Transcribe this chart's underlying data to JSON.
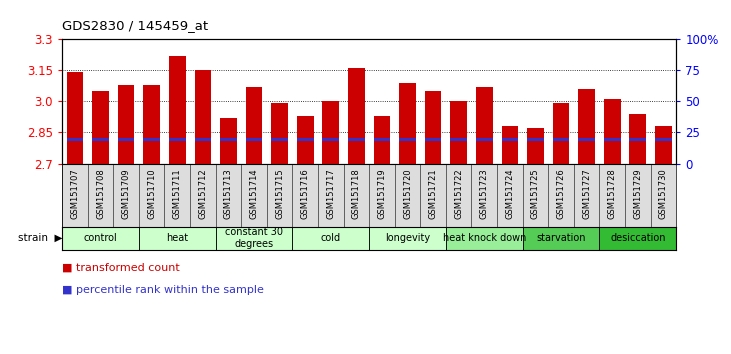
{
  "title": "GDS2830 / 145459_at",
  "samples": [
    "GSM151707",
    "GSM151708",
    "GSM151709",
    "GSM151710",
    "GSM151711",
    "GSM151712",
    "GSM151713",
    "GSM151714",
    "GSM151715",
    "GSM151716",
    "GSM151717",
    "GSM151718",
    "GSM151719",
    "GSM151720",
    "GSM151721",
    "GSM151722",
    "GSM151723",
    "GSM151724",
    "GSM151725",
    "GSM151726",
    "GSM151727",
    "GSM151728",
    "GSM151729",
    "GSM151730"
  ],
  "transformed_counts": [
    3.14,
    3.05,
    3.08,
    3.08,
    3.22,
    3.15,
    2.92,
    3.07,
    2.99,
    2.93,
    3.0,
    3.16,
    2.93,
    3.09,
    3.05,
    3.0,
    3.07,
    2.88,
    2.87,
    2.99,
    3.06,
    3.01,
    2.94,
    2.88
  ],
  "percentile_value": 0.19,
  "ylim_min": 2.7,
  "ylim_max": 3.3,
  "yticks": [
    2.7,
    2.85,
    3.0,
    3.15,
    3.3
  ],
  "right_yticks": [
    0,
    25,
    50,
    75,
    100
  ],
  "right_ytick_labels": [
    "0",
    "25",
    "50",
    "75",
    "100%"
  ],
  "bar_color": "#cc0000",
  "percentile_color": "#3333cc",
  "groups": [
    {
      "label": "control",
      "indices": [
        0,
        1,
        2
      ],
      "color": "#ccffcc"
    },
    {
      "label": "heat",
      "indices": [
        3,
        4,
        5
      ],
      "color": "#ccffcc"
    },
    {
      "label": "constant 30\ndegrees",
      "indices": [
        6,
        7,
        8
      ],
      "color": "#ccffcc"
    },
    {
      "label": "cold",
      "indices": [
        9,
        10,
        11
      ],
      "color": "#ccffcc"
    },
    {
      "label": "longevity",
      "indices": [
        12,
        13,
        14
      ],
      "color": "#ccffcc"
    },
    {
      "label": "heat knock down",
      "indices": [
        15,
        16,
        17
      ],
      "color": "#99ee99"
    },
    {
      "label": "starvation",
      "indices": [
        18,
        19,
        20
      ],
      "color": "#55cc55"
    },
    {
      "label": "desiccation",
      "indices": [
        21,
        22,
        23
      ],
      "color": "#33bb33"
    }
  ],
  "bg_color": "#ffffff",
  "bar_width": 0.65,
  "xlabel_bg": "#dddddd",
  "group_border_color": "#000000"
}
